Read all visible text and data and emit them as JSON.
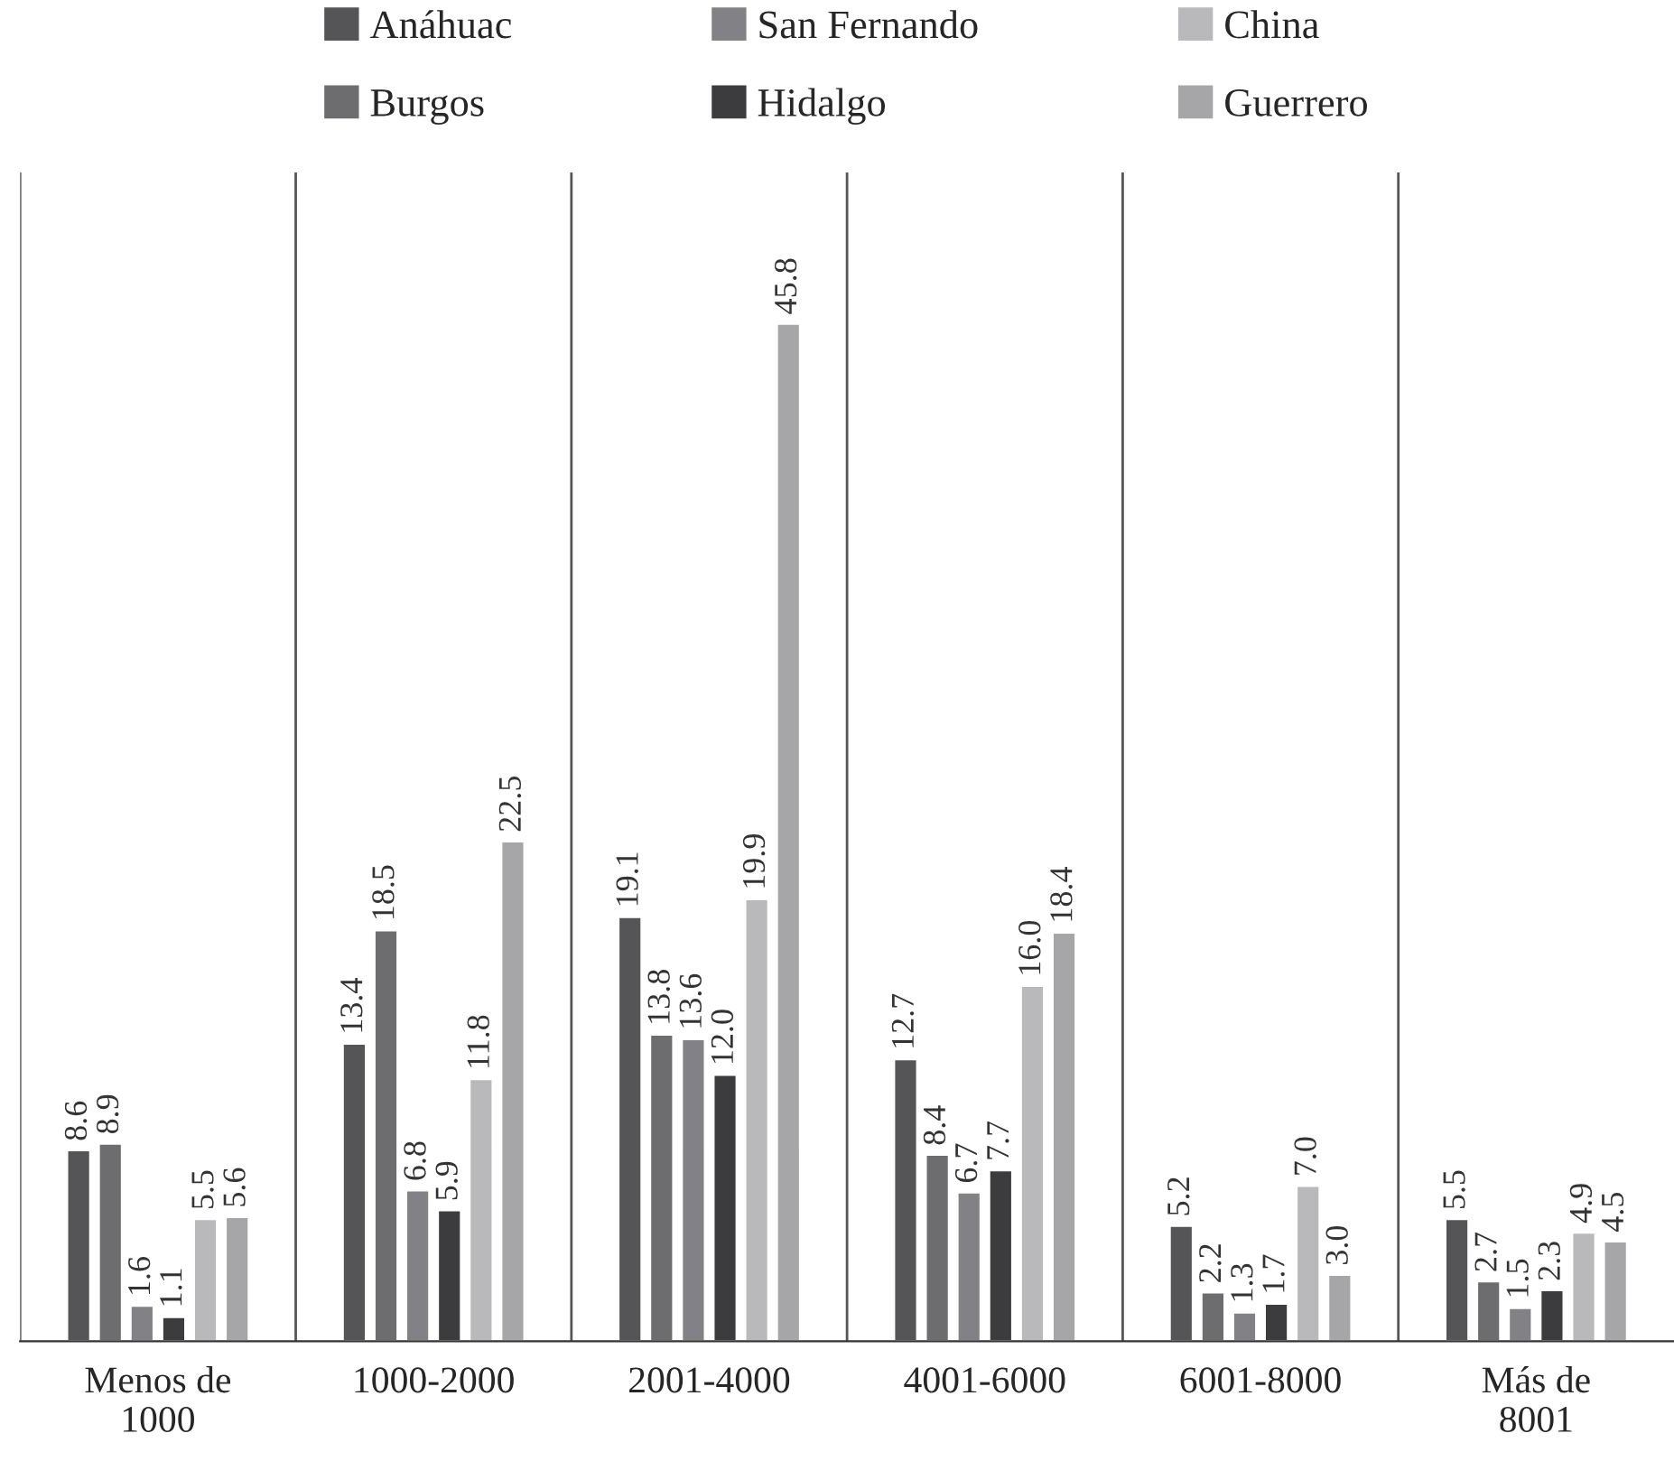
{
  "chart_data": {
    "type": "bar",
    "categories": [
      "Menos de\n1000",
      "1000-2000",
      "2001-4000",
      "4001-6000",
      "6001-8000",
      "Más de\n8001"
    ],
    "series": [
      {
        "name": "Anáhuac",
        "color": "#555557",
        "values": [
          8.6,
          13.4,
          19.1,
          12.7,
          5.2,
          5.5
        ],
        "value_labels": [
          "8.6",
          "13.4",
          "19.1",
          "12.7",
          "5.2",
          "5.5"
        ]
      },
      {
        "name": "Burgos",
        "color": "#6d6d70",
        "values": [
          8.9,
          18.5,
          13.8,
          8.4,
          2.2,
          2.7
        ],
        "value_labels": [
          "8.9",
          "18.5",
          "13.8",
          "8.4",
          "2.2",
          "2.7"
        ]
      },
      {
        "name": "San Fernando",
        "color": "#828286",
        "values": [
          1.6,
          6.8,
          13.6,
          6.7,
          1.3,
          1.5
        ],
        "value_labels": [
          "1.6",
          "6.8",
          "13.6",
          "6.7",
          "1.3",
          "1.5"
        ]
      },
      {
        "name": "Hidalgo",
        "color": "#3c3c3e",
        "values": [
          1.1,
          5.9,
          12,
          7.7,
          1.7,
          2.3
        ],
        "value_labels": [
          "1.1",
          "5.9",
          "12.0",
          "7.7",
          "1.7",
          "2.3"
        ]
      },
      {
        "name": "China",
        "color": "#b9b9bc",
        "values": [
          5.5,
          11.8,
          19.9,
          16,
          7,
          4.9
        ],
        "value_labels": [
          "5.5",
          "11.8",
          "19.9",
          "16.0",
          "7.0",
          "4.9"
        ]
      },
      {
        "name": "Guerrero",
        "color": "#a6a6a9",
        "values": [
          5.6,
          22.5,
          45.8,
          18.4,
          3,
          4.5
        ],
        "value_labels": [
          "5.6",
          "22.5",
          "45.8",
          "18.4",
          "3.0",
          "4.5"
        ]
      }
    ],
    "ylim": [
      0,
      52.6
    ],
    "tick_labels": "x",
    "legend": "top"
  }
}
